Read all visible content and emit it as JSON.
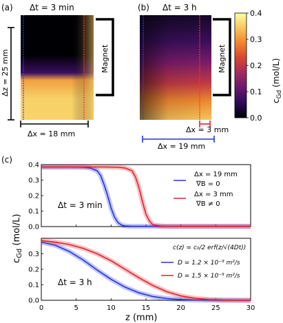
{
  "panel_a": {
    "label": "(a)",
    "title": "Δt = 3 min",
    "dz_label": "Δz = 25 mm",
    "dx_label": "Δx = 18 mm",
    "magnet_label": "Magnet"
  },
  "panel_b": {
    "label": "(b)",
    "title": "Δt = 3 h",
    "magnet_label": "Magnet",
    "dx_small_label": "Δx = 3 mm",
    "dx_large_label": "Δx = 19 mm"
  },
  "colorbar": {
    "label": "c",
    "label_sub": "Gd",
    "label_unit": " (mol/L)",
    "ticks": [
      0.0,
      0.1,
      0.2,
      0.3,
      0.4
    ],
    "tick_labels": [
      "0.0",
      "0.1",
      "0.2",
      "0.3",
      "0.4"
    ],
    "colors": [
      "#000004",
      "#2c0b5a",
      "#6a176e",
      "#a32b5f",
      "#d8452f",
      "#f4832a",
      "#f8c55c",
      "#fcffa4"
    ]
  },
  "panel_c": {
    "label": "(c)"
  },
  "chart_data": [
    {
      "type": "line",
      "panel": "c-top",
      "xlim": [
        0,
        30
      ],
      "ylim": [
        0,
        0.4
      ],
      "yticks": [
        0.0,
        0.1,
        0.2,
        0.3,
        0.4
      ],
      "ytick_labels": [
        "0.0",
        "0.1",
        "0.2",
        "0.3",
        "0.4"
      ],
      "annotation": "Δt = 3 min",
      "series": [
        {
          "color": "#2233dd",
          "legend_line1": "Δx = 19 mm",
          "legend_line2": "∇B = 0",
          "x": [
            0,
            4,
            6,
            7,
            8,
            8.5,
            9,
            9.5,
            10,
            10.5,
            11,
            11.5,
            12,
            13,
            30
          ],
          "y": [
            0.385,
            0.385,
            0.383,
            0.378,
            0.36,
            0.33,
            0.27,
            0.2,
            0.12,
            0.06,
            0.025,
            0.01,
            0.004,
            0.002,
            0.002
          ]
        },
        {
          "color": "#e0222a",
          "legend_line1": "Δx = 3 mm",
          "legend_line2": "∇B ≠ 0",
          "x": [
            0,
            9,
            11,
            12,
            13,
            13.5,
            14,
            14.5,
            15,
            15.5,
            16,
            17,
            18,
            30
          ],
          "y": [
            0.385,
            0.385,
            0.383,
            0.378,
            0.36,
            0.32,
            0.25,
            0.16,
            0.08,
            0.035,
            0.012,
            0.004,
            0.002,
            0.002
          ]
        }
      ]
    },
    {
      "type": "line",
      "panel": "c-bottom",
      "xlabel": "z (mm)",
      "xlim": [
        0,
        30
      ],
      "ylim": [
        0,
        0.4
      ],
      "xticks": [
        0,
        5,
        10,
        15,
        20,
        25,
        30
      ],
      "xtick_labels": [
        "0",
        "5",
        "10",
        "15",
        "20",
        "25",
        "30"
      ],
      "yticks": [
        0.0,
        0.1,
        0.2,
        0.3
      ],
      "ytick_labels": [
        "0.0",
        "0.1",
        "0.2",
        "0.3"
      ],
      "annotation": "Δt = 3 h",
      "formula": "c(z) = c₀/2 erf(z/√(4Dt))",
      "series": [
        {
          "color": "#2233dd",
          "legend": "D = 1.2 × 10⁻⁹ m²/s",
          "x": [
            0,
            2,
            4,
            6,
            8,
            10,
            12,
            14,
            16,
            18,
            20,
            22,
            24,
            26,
            30
          ],
          "y": [
            0.375,
            0.355,
            0.315,
            0.26,
            0.195,
            0.135,
            0.085,
            0.048,
            0.024,
            0.011,
            0.005,
            0.002,
            0.001,
            0.0,
            0.0
          ]
        },
        {
          "color": "#e0222a",
          "legend": "D = 1.5 × 10⁻⁹ m²/s",
          "x": [
            0,
            2,
            4,
            6,
            8,
            10,
            12,
            14,
            16,
            18,
            20,
            22,
            24,
            26,
            30
          ],
          "y": [
            0.385,
            0.375,
            0.36,
            0.335,
            0.3,
            0.255,
            0.2,
            0.145,
            0.095,
            0.055,
            0.028,
            0.013,
            0.005,
            0.002,
            0.0
          ]
        }
      ]
    }
  ],
  "shared_ylabel": {
    "main": "c",
    "sub": "Gd",
    "unit": " (mol/L)"
  }
}
